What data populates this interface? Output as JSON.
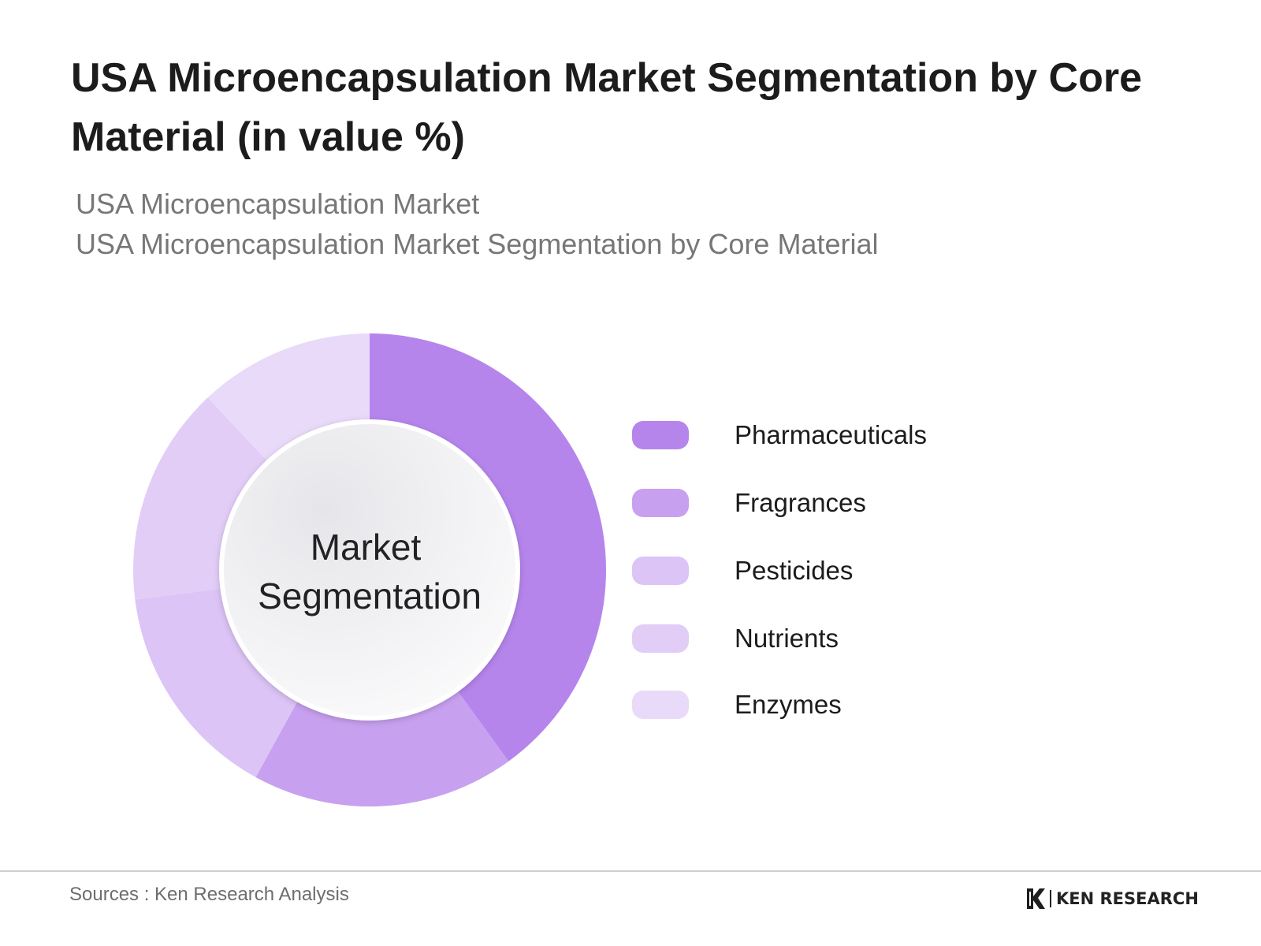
{
  "header": {
    "title": "USA Microencapsulation Market Segmentation by Core Material (in value %)",
    "subtitle_1": "USA Microencapsulation Market",
    "subtitle_2": "USA Microencapsulation Market Segmentation by Core Material"
  },
  "chart_data": {
    "type": "pie",
    "style": "donut",
    "center_label_line1": "Market",
    "center_label_line2": "Segmentation",
    "categories": [
      "Pharmaceuticals",
      "Fragrances",
      "Pesticides",
      "Nutrients",
      "Enzymes"
    ],
    "values": [
      40,
      18,
      15,
      15,
      12
    ],
    "colors": [
      "#b585ec",
      "#c8a0f0",
      "#dcc4f6",
      "#e2cdf7",
      "#e9daf9"
    ],
    "legend_position": "right"
  },
  "footer": {
    "source": "Sources : Ken Research Analysis",
    "brand": "KEN RESEARCH"
  }
}
